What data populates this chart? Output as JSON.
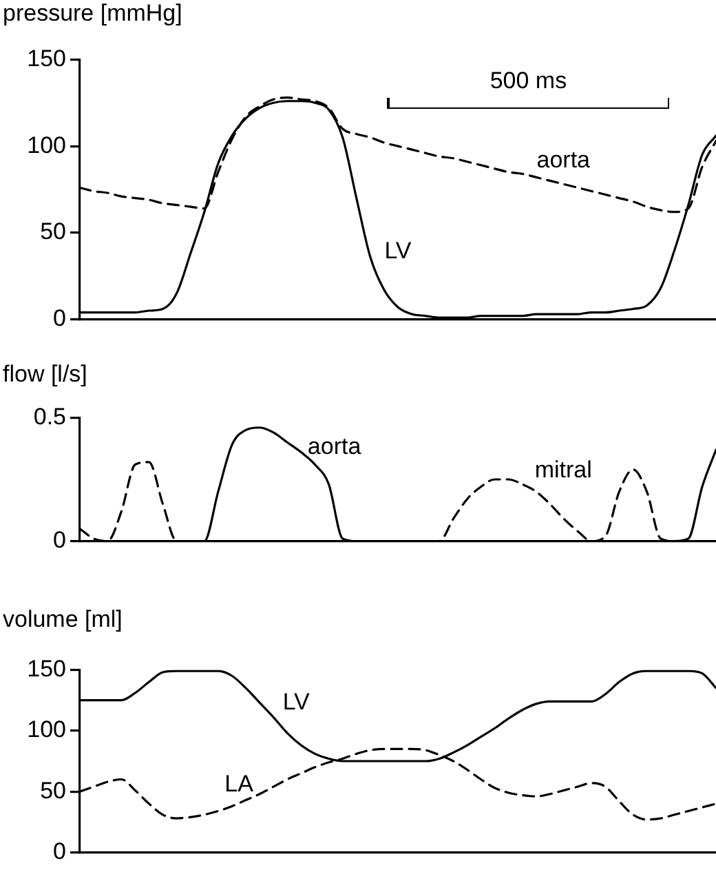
{
  "chart_data": [
    {
      "type": "line",
      "ylabel": "pressure [mmHg]",
      "annotations": [
        "500 ms"
      ],
      "tick_labels": "y",
      "marker": "none",
      "ylim": [
        0,
        150
      ],
      "yticks": [
        0,
        50,
        100,
        150
      ],
      "categories": [
        null,
        null,
        null,
        null,
        null,
        null,
        null,
        null,
        null,
        null,
        null,
        null,
        null,
        null,
        null,
        null,
        null,
        null,
        null,
        null,
        null,
        null,
        null,
        null,
        null,
        null,
        null,
        null,
        null,
        null,
        null,
        null,
        null,
        null,
        null,
        null,
        null,
        null,
        null,
        null,
        null,
        null,
        null,
        null,
        null,
        null,
        null
      ],
      "series": [
        {
          "name": "LV",
          "color": "#000000",
          "line_style": "solid",
          "values": [
            4,
            4,
            4,
            4,
            4,
            5,
            6,
            15,
            38,
            62,
            90,
            106,
            116,
            122,
            125,
            126,
            126,
            125,
            121,
            105,
            70,
            36,
            17,
            7,
            3,
            2,
            1,
            1,
            1,
            2,
            2,
            2,
            2,
            3,
            3,
            3,
            3,
            4,
            4,
            5,
            6,
            8,
            18,
            40,
            66,
            95,
            106
          ]
        },
        {
          "name": "aorta",
          "color": "#000000",
          "line_style": "dashed",
          "values": [
            76,
            74,
            73,
            71,
            70,
            69,
            67,
            66,
            65,
            64,
            85,
            104,
            117,
            123,
            127,
            128,
            127,
            126,
            122,
            110,
            107,
            105,
            102,
            100,
            98,
            96,
            94,
            93,
            91,
            89,
            87,
            85,
            84,
            82,
            80,
            78,
            76,
            74,
            72,
            70,
            68,
            65,
            63,
            62,
            64,
            88,
            103
          ]
        }
      ]
    },
    {
      "type": "line",
      "ylabel": "flow [l/s]",
      "tick_labels": "y",
      "marker": "none",
      "ylim": [
        0,
        0.5
      ],
      "yticks": [
        0,
        0.5
      ],
      "categories": [
        null,
        null,
        null,
        null,
        null,
        null,
        null,
        null,
        null,
        null,
        null,
        null,
        null,
        null,
        null,
        null,
        null,
        null,
        null,
        null,
        null,
        null,
        null,
        null,
        null,
        null,
        null,
        null,
        null,
        null,
        null,
        null,
        null,
        null,
        null,
        null,
        null,
        null,
        null,
        null,
        null,
        null,
        null,
        null,
        null,
        null,
        null
      ],
      "series": [
        {
          "name": "aorta",
          "color": "#000000",
          "line_style": "solid",
          "values": [
            0,
            0,
            0,
            0,
            0,
            0,
            0,
            0,
            0,
            0,
            0.2,
            0.39,
            0.45,
            0.46,
            0.44,
            0.4,
            0.36,
            0.31,
            0.23,
            0.01,
            0,
            0,
            0,
            0,
            0,
            0,
            0,
            0,
            0,
            0,
            0,
            0,
            0,
            0,
            0,
            0,
            0,
            0,
            0,
            0,
            0,
            0,
            0,
            0,
            0.01,
            0.22,
            0.37
          ]
        },
        {
          "name": "mitral",
          "color": "#000000",
          "line_style": "dashed",
          "values": [
            0.05,
            0.01,
            0,
            0.12,
            0.31,
            0.32,
            0.15,
            0,
            0,
            0,
            0,
            0,
            0,
            0,
            0,
            0,
            0,
            0,
            0,
            0,
            0,
            0,
            0,
            0,
            0,
            0,
            0,
            0.09,
            0.17,
            0.22,
            0.25,
            0.25,
            0.23,
            0.2,
            0.15,
            0.09,
            0.04,
            0,
            0.02,
            0.2,
            0.29,
            0.2,
            0.01,
            0,
            0,
            0,
            0
          ]
        }
      ]
    },
    {
      "type": "line",
      "ylabel": "volume [ml]",
      "tick_labels": "y",
      "marker": "none",
      "ylim": [
        0,
        150
      ],
      "yticks": [
        0,
        50,
        100,
        150
      ],
      "categories": [
        null,
        null,
        null,
        null,
        null,
        null,
        null,
        null,
        null,
        null,
        null,
        null,
        null,
        null,
        null,
        null,
        null,
        null,
        null,
        null,
        null,
        null,
        null,
        null,
        null,
        null,
        null,
        null,
        null,
        null,
        null,
        null,
        null,
        null,
        null,
        null,
        null,
        null,
        null,
        null,
        null,
        null,
        null,
        null,
        null,
        null,
        null
      ],
      "series": [
        {
          "name": "LV",
          "color": "#000000",
          "line_style": "solid",
          "values": [
            125,
            125,
            125,
            125,
            131,
            140,
            148,
            149,
            149,
            149,
            149,
            145,
            135,
            123,
            111,
            98,
            88,
            81,
            77,
            75,
            75,
            75,
            75,
            75,
            75,
            75,
            77,
            82,
            88,
            95,
            102,
            110,
            117,
            122,
            124,
            124,
            124,
            124,
            130,
            140,
            147,
            149,
            149,
            149,
            149,
            147,
            135
          ]
        },
        {
          "name": "LA",
          "color": "#000000",
          "line_style": "dashed",
          "values": [
            50,
            54,
            58,
            60,
            51,
            40,
            31,
            28,
            29,
            31,
            34,
            38,
            43,
            48,
            54,
            60,
            65,
            70,
            74,
            77,
            81,
            84,
            85,
            85,
            85,
            84,
            80,
            75,
            68,
            60,
            53,
            49,
            47,
            46,
            48,
            51,
            54,
            57,
            54,
            42,
            31,
            27,
            28,
            31,
            34,
            37,
            40
          ]
        }
      ]
    }
  ]
}
